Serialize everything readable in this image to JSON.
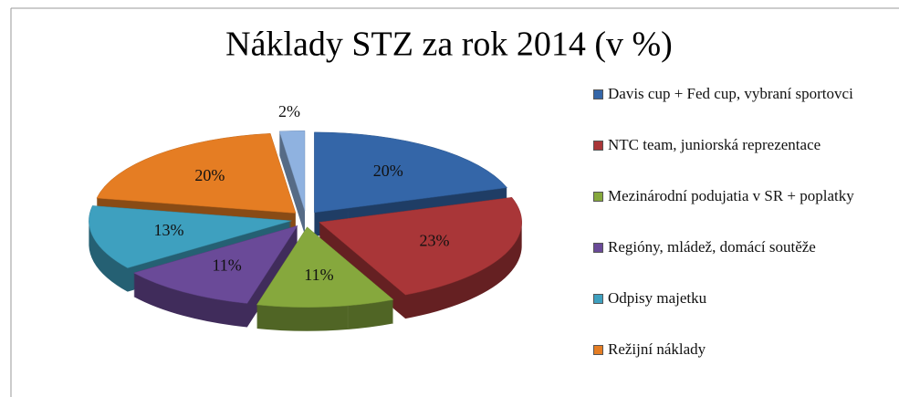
{
  "chart_data": {
    "type": "pie3d",
    "title": "Náklady STZ za rok 2014 (v %)",
    "categories": [
      "Davis cup + Fed cup, vybraní sportovci",
      "NTC team, juniorská reprezentace",
      "Mezinárodní podujatia v SR + poplatky",
      "Regióny, mládež, domácí soutěže",
      "Odpisy majetku",
      "Režijní náklady",
      null
    ],
    "values": [
      20,
      23,
      11,
      11,
      13,
      20,
      2
    ],
    "value_labels": [
      "20%",
      "23%",
      "11%",
      "11%",
      "13%",
      "20%",
      "2%"
    ],
    "colors": [
      "#3466a8",
      "#a93638",
      "#86a83d",
      "#6a4a98",
      "#3ea0bf",
      "#e57d23",
      "#8fb2e0"
    ],
    "legend": "right"
  }
}
